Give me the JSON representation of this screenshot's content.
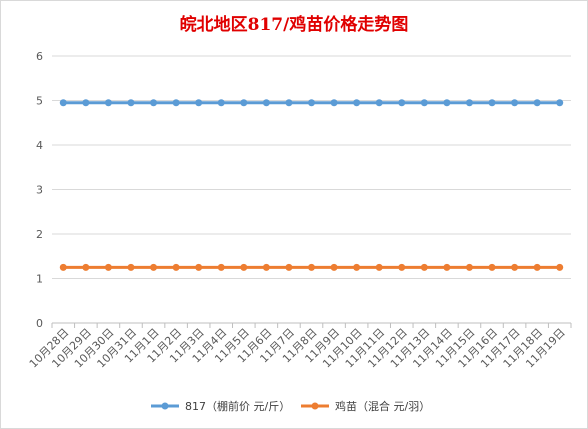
{
  "chart_data": {
    "type": "line",
    "title": "皖北地区817/鸡苗价格走势图",
    "xlabel": "",
    "ylabel": "",
    "ylim": [
      0,
      6
    ],
    "yticks": [
      0,
      1,
      2,
      3,
      4,
      5,
      6
    ],
    "grid": true,
    "legend_position": "bottom",
    "categories": [
      "10月28日",
      "10月29日",
      "10月30日",
      "10月31日",
      "11月1日",
      "11月2日",
      "11月3日",
      "11月4日",
      "11月5日",
      "11月6日",
      "11月7日",
      "11月8日",
      "11月9日",
      "11月10日",
      "11月11日",
      "11月12日",
      "11月13日",
      "11月14日",
      "11月15日",
      "11月16日",
      "11月17日",
      "11月18日",
      "11月19日"
    ],
    "series": [
      {
        "name": "817（棚前价 元/斤）",
        "color": "#5b9bd5",
        "values": [
          4.95,
          4.95,
          4.95,
          4.95,
          4.95,
          4.95,
          4.95,
          4.95,
          4.95,
          4.95,
          4.95,
          4.95,
          4.95,
          4.95,
          4.95,
          4.95,
          4.95,
          4.95,
          4.95,
          4.95,
          4.95,
          4.95,
          4.95
        ]
      },
      {
        "name": "鸡苗（混合 元/羽）",
        "color": "#ed7d31",
        "values": [
          1.25,
          1.25,
          1.25,
          1.25,
          1.25,
          1.25,
          1.25,
          1.25,
          1.25,
          1.25,
          1.25,
          1.25,
          1.25,
          1.25,
          1.25,
          1.25,
          1.25,
          1.25,
          1.25,
          1.25,
          1.25,
          1.25,
          1.25
        ]
      }
    ]
  }
}
